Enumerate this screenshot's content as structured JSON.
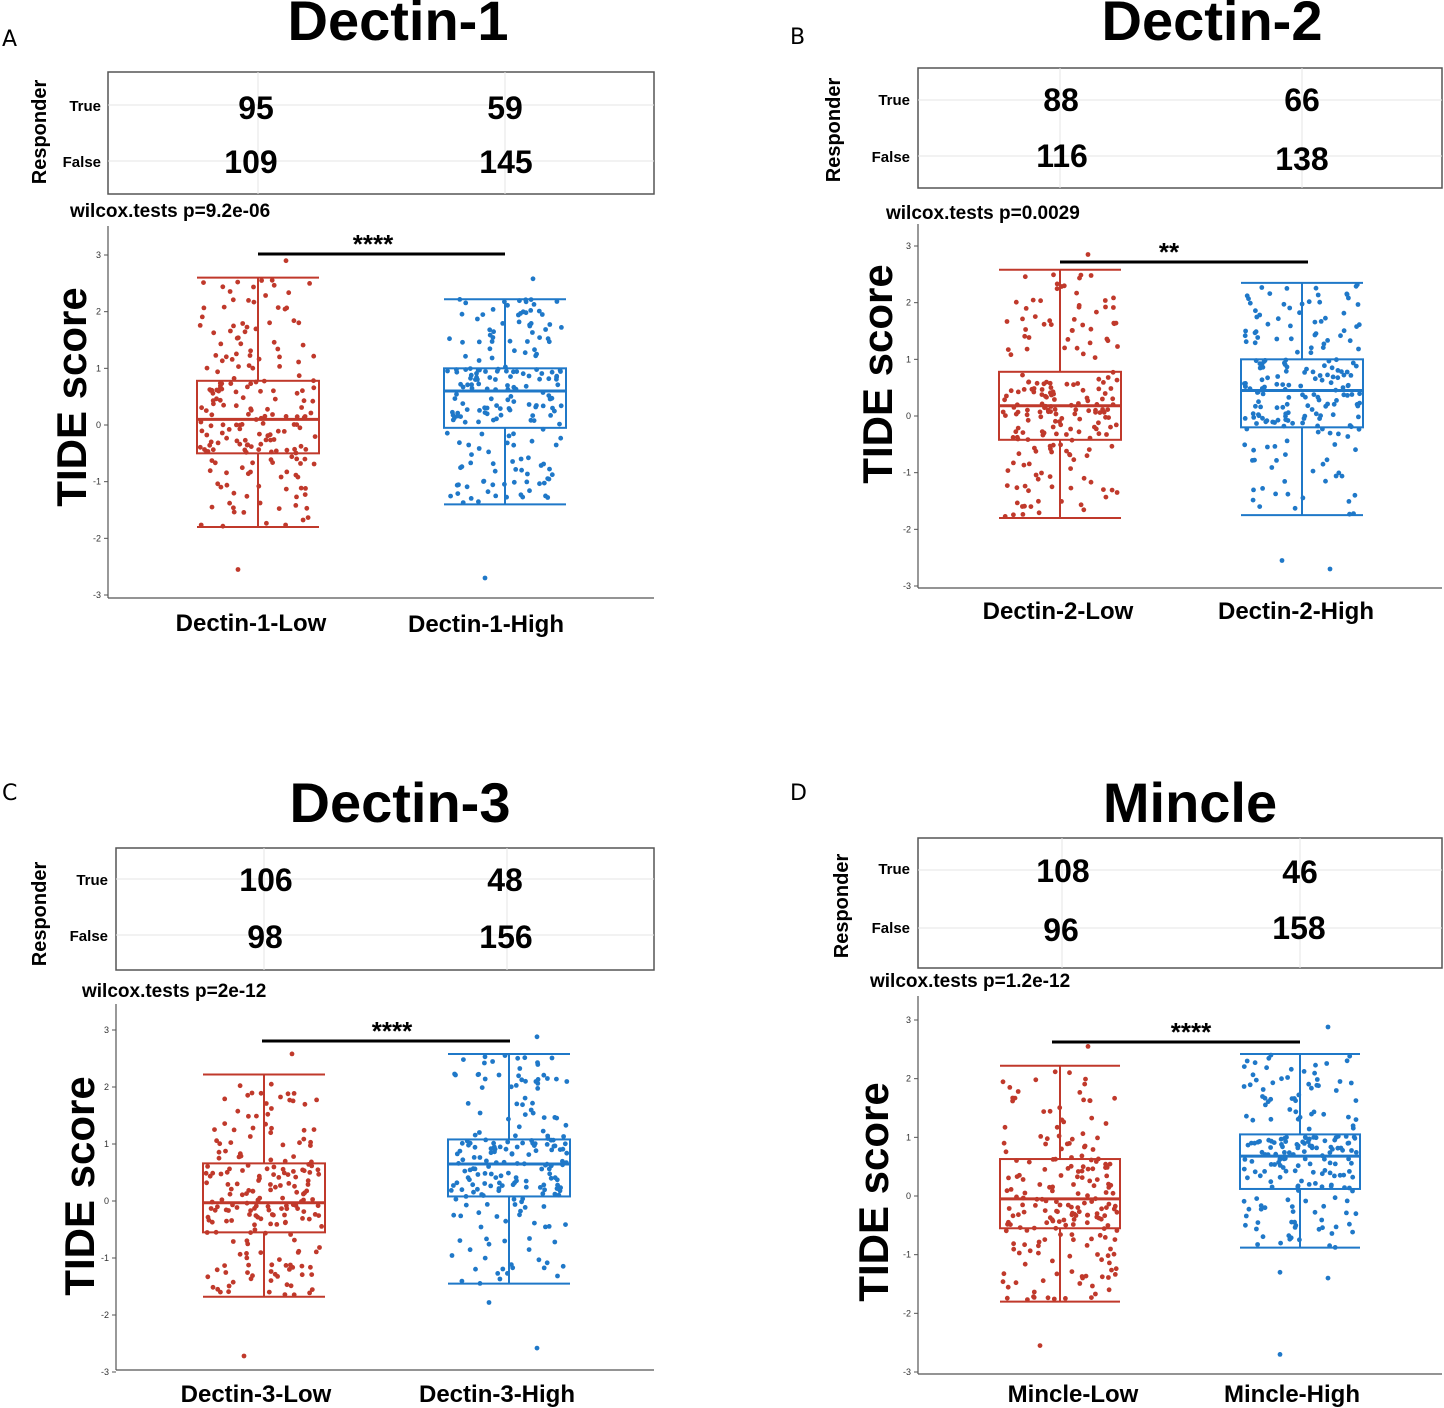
{
  "colors": {
    "low": "#c0392b",
    "high": "#1f78c8",
    "axis": "#555555",
    "sig": "#000000",
    "table_border": "#555555"
  },
  "panels": [
    {
      "letter": "A",
      "title": "Dectin-1",
      "responder_label": "Responder",
      "rows": [
        "True",
        "False"
      ],
      "counts": {
        "True": [
          95,
          59
        ],
        "False": [
          109,
          145
        ]
      },
      "ptext": "wilcox.tests p=9.2e-06",
      "stars": "****"
    },
    {
      "letter": "B",
      "title": "Dectin-2",
      "responder_label": "Responder",
      "rows": [
        "True",
        "False"
      ],
      "counts": {
        "True": [
          88,
          66
        ],
        "False": [
          116,
          138
        ]
      },
      "ptext": "wilcox.tests p=0.0029",
      "stars": "**"
    },
    {
      "letter": "C",
      "title": "Dectin-3",
      "responder_label": "Responder",
      "rows": [
        "True",
        "False"
      ],
      "counts": {
        "True": [
          106,
          48
        ],
        "False": [
          98,
          156
        ]
      },
      "ptext": "wilcox.tests p=2e-12",
      "stars": "****"
    },
    {
      "letter": "D",
      "title": "Mincle",
      "responder_label": "Responder",
      "rows": [
        "True",
        "False"
      ],
      "counts": {
        "True": [
          108,
          46
        ],
        "False": [
          96,
          158
        ]
      },
      "ptext": "wilcox.tests p=1.2e-12",
      "stars": "****"
    }
  ],
  "chart_data": [
    {
      "type": "box",
      "panel": "A",
      "title": "Dectin-1",
      "ylabel": "TIDE score",
      "xlabel": "",
      "ylim": [
        -3,
        3
      ],
      "yticks": [
        -3,
        -2,
        -1,
        0,
        1,
        2,
        3
      ],
      "categories": [
        "Dectin-1-Low",
        "Dectin-1-High"
      ],
      "series": [
        {
          "name": "Dectin-1-Low",
          "n": 204,
          "whisker_low": -1.8,
          "q1": -0.5,
          "median": 0.1,
          "q3": 0.78,
          "whisker_high": 2.6,
          "outliers": [
            2.9,
            -2.55
          ]
        },
        {
          "name": "Dectin-1-High",
          "n": 204,
          "whisker_low": -1.4,
          "q1": -0.05,
          "median": 0.6,
          "q3": 1.0,
          "whisker_high": 2.22,
          "outliers": [
            2.58,
            -2.7
          ]
        }
      ],
      "test": "wilcox.tests",
      "p_value": "9.2e-06",
      "significance": "****"
    },
    {
      "type": "box",
      "panel": "B",
      "title": "Dectin-2",
      "ylabel": "TIDE score",
      "xlabel": "",
      "ylim": [
        -3,
        3
      ],
      "yticks": [
        -3,
        -2,
        -1,
        0,
        1,
        2,
        3
      ],
      "categories": [
        "Dectin-2-Low",
        "Dectin-2-High"
      ],
      "series": [
        {
          "name": "Dectin-2-Low",
          "n": 204,
          "whisker_low": -1.8,
          "q1": -0.42,
          "median": 0.18,
          "q3": 0.78,
          "whisker_high": 2.58,
          "outliers": [
            2.85
          ]
        },
        {
          "name": "Dectin-2-High",
          "n": 204,
          "whisker_low": -1.75,
          "q1": -0.2,
          "median": 0.45,
          "q3": 1.0,
          "whisker_high": 2.35,
          "outliers": [
            -2.7,
            -2.55
          ]
        }
      ],
      "test": "wilcox.tests",
      "p_value": "0.0029",
      "significance": "**"
    },
    {
      "type": "box",
      "panel": "C",
      "title": "Dectin-3",
      "ylabel": "TIDE score",
      "xlabel": "",
      "ylim": [
        -3,
        3
      ],
      "yticks": [
        -3,
        -2,
        -1,
        0,
        1,
        2,
        3
      ],
      "categories": [
        "Dectin-3-Low",
        "Dectin-3-High"
      ],
      "series": [
        {
          "name": "Dectin-3-Low",
          "n": 204,
          "whisker_low": -1.68,
          "q1": -0.55,
          "median": -0.03,
          "q3": 0.66,
          "whisker_high": 2.22,
          "outliers": [
            2.58,
            -2.72
          ]
        },
        {
          "name": "Dectin-3-High",
          "n": 204,
          "whisker_low": -1.45,
          "q1": 0.08,
          "median": 0.65,
          "q3": 1.08,
          "whisker_high": 2.58,
          "outliers": [
            2.88,
            -1.78,
            -2.58
          ]
        }
      ],
      "test": "wilcox.tests",
      "p_value": "2e-12",
      "significance": "****"
    },
    {
      "type": "box",
      "panel": "D",
      "title": "Mincle",
      "ylabel": "TIDE score",
      "xlabel": "",
      "ylim": [
        -3,
        3
      ],
      "yticks": [
        -3,
        -2,
        -1,
        0,
        1,
        2,
        3
      ],
      "categories": [
        "Mincle-Low",
        "Mincle-High"
      ],
      "series": [
        {
          "name": "Mincle-Low",
          "n": 204,
          "whisker_low": -1.8,
          "q1": -0.55,
          "median": -0.05,
          "q3": 0.63,
          "whisker_high": 2.22,
          "outliers": [
            2.55,
            -2.55
          ]
        },
        {
          "name": "Mincle-High",
          "n": 204,
          "whisker_low": -0.88,
          "q1": 0.12,
          "median": 0.68,
          "q3": 1.05,
          "whisker_high": 2.42,
          "outliers": [
            2.88,
            -1.3,
            -1.4,
            -2.7
          ]
        }
      ],
      "test": "wilcox.tests",
      "p_value": "1.2e-12",
      "significance": "****"
    }
  ]
}
